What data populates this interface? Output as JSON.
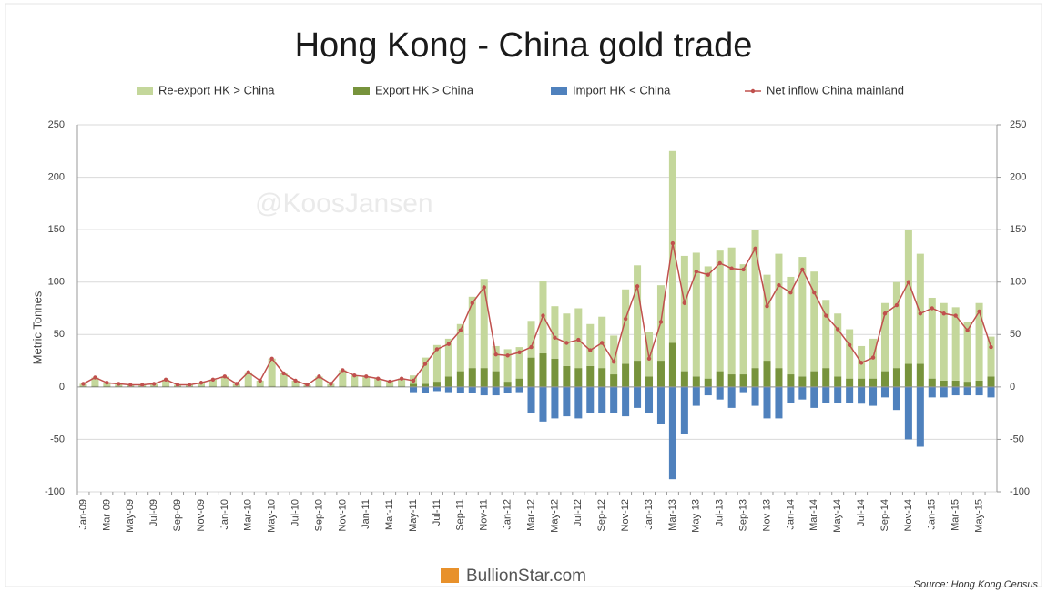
{
  "chart_data": {
    "type": "bar",
    "title": "Hong Kong - China gold trade",
    "y_label": "Metric Tonnes",
    "watermark": "@KoosJansen",
    "logo": "BullionStar.com",
    "source": "Source: Hong Kong Census",
    "categories": [
      "Jan-09",
      null,
      "Mar-09",
      null,
      "May-09",
      null,
      "Jul-09",
      null,
      "Sep-09",
      null,
      "Nov-09",
      null,
      "Jan-10",
      null,
      "Mar-10",
      null,
      "May-10",
      null,
      "Jul-10",
      null,
      "Sep-10",
      null,
      "Nov-10",
      null,
      "Jan-11",
      null,
      "Mar-11",
      null,
      "May-11",
      null,
      "Jul-11",
      null,
      "Sep-11",
      null,
      "Nov-11",
      null,
      "Jan-12",
      null,
      "Mar-12",
      null,
      "May-12",
      null,
      "Jul-12",
      null,
      "Sep-12",
      null,
      "Nov-12",
      null,
      "Jan-13",
      null,
      "Mar-13",
      null,
      "May-13",
      null,
      "Jul-13",
      null,
      "Sep-13",
      null,
      "Nov-13",
      null,
      "Jan-14",
      null,
      "Mar-14",
      null,
      "May-14",
      null,
      "Jul-14",
      null,
      "Sep-14",
      null,
      "Nov-14",
      null,
      "Jan-15",
      null,
      "Mar-15",
      null,
      "May-15",
      null
    ],
    "series": [
      {
        "name": "Re-export HK > China",
        "color": "#c4d79b",
        "values": [
          2,
          8,
          3,
          2,
          1,
          1,
          2,
          6,
          1,
          1,
          3,
          6,
          9,
          2,
          13,
          5,
          26,
          12,
          5,
          1,
          9,
          2,
          15,
          10,
          9,
          7,
          4,
          7,
          8,
          25,
          35,
          36,
          45,
          68,
          85,
          24,
          31,
          30,
          35,
          69,
          50,
          50,
          57,
          40,
          49,
          37,
          71,
          91,
          42,
          72,
          183,
          110,
          118,
          107,
          115,
          121,
          105,
          132,
          82,
          109,
          93,
          114,
          95,
          65,
          60,
          47,
          31,
          38,
          65,
          82,
          128,
          105,
          77,
          74,
          70,
          57,
          74,
          38
        ]
      },
      {
        "name": "Export HK > China",
        "color": "#77933c",
        "values": [
          1,
          1,
          1,
          1,
          1,
          1,
          1,
          1,
          1,
          1,
          1,
          1,
          1,
          1,
          1,
          1,
          1,
          1,
          1,
          1,
          1,
          1,
          1,
          1,
          1,
          1,
          1,
          1,
          3,
          3,
          5,
          10,
          15,
          18,
          18,
          15,
          5,
          8,
          28,
          32,
          27,
          20,
          18,
          20,
          18,
          12,
          22,
          25,
          10,
          25,
          42,
          15,
          10,
          8,
          15,
          12,
          12,
          18,
          25,
          18,
          12,
          10,
          15,
          18,
          10,
          8,
          8,
          8,
          15,
          18,
          22,
          22,
          8,
          6,
          6,
          5,
          6,
          10
        ]
      },
      {
        "name": "Import HK < China",
        "color": "#4f81bd",
        "values": [
          0,
          0,
          0,
          0,
          0,
          0,
          0,
          0,
          0,
          0,
          0,
          0,
          0,
          0,
          0,
          0,
          0,
          0,
          0,
          0,
          0,
          0,
          0,
          0,
          0,
          0,
          0,
          0,
          -5,
          -6,
          -4,
          -5,
          -6,
          -6,
          -8,
          -8,
          -6,
          -5,
          -25,
          -33,
          -30,
          -28,
          -30,
          -25,
          -25,
          -25,
          -28,
          -20,
          -25,
          -35,
          -88,
          -45,
          -18,
          -8,
          -12,
          -20,
          -5,
          -18,
          -30,
          -30,
          -15,
          -12,
          -20,
          -15,
          -15,
          -15,
          -16,
          -18,
          -10,
          -22,
          -50,
          -57,
          -10,
          -10,
          -8,
          -8,
          -8,
          -10
        ]
      },
      {
        "name": "Net inflow China mainland",
        "type": "line",
        "color": "#c0504d",
        "values": [
          3,
          9,
          4,
          3,
          2,
          2,
          3,
          7,
          2,
          2,
          4,
          7,
          10,
          3,
          14,
          6,
          27,
          13,
          6,
          2,
          10,
          3,
          16,
          11,
          10,
          8,
          5,
          8,
          6,
          22,
          36,
          41,
          54,
          80,
          95,
          31,
          30,
          33,
          38,
          68,
          47,
          42,
          45,
          35,
          42,
          24,
          65,
          96,
          27,
          62,
          137,
          80,
          110,
          107,
          118,
          113,
          112,
          132,
          77,
          97,
          90,
          112,
          90,
          68,
          55,
          40,
          23,
          28,
          70,
          78,
          100,
          70,
          75,
          70,
          68,
          54,
          72,
          38
        ]
      }
    ],
    "stacked": true,
    "ylim": [
      -100,
      250
    ],
    "yticks": [
      -100,
      -50,
      0,
      50,
      100,
      150,
      200,
      250
    ],
    "y2lim": [
      -100,
      250
    ],
    "y2ticks": [
      -100,
      -50,
      0,
      50,
      100,
      150,
      200,
      250
    ],
    "grid": true
  }
}
